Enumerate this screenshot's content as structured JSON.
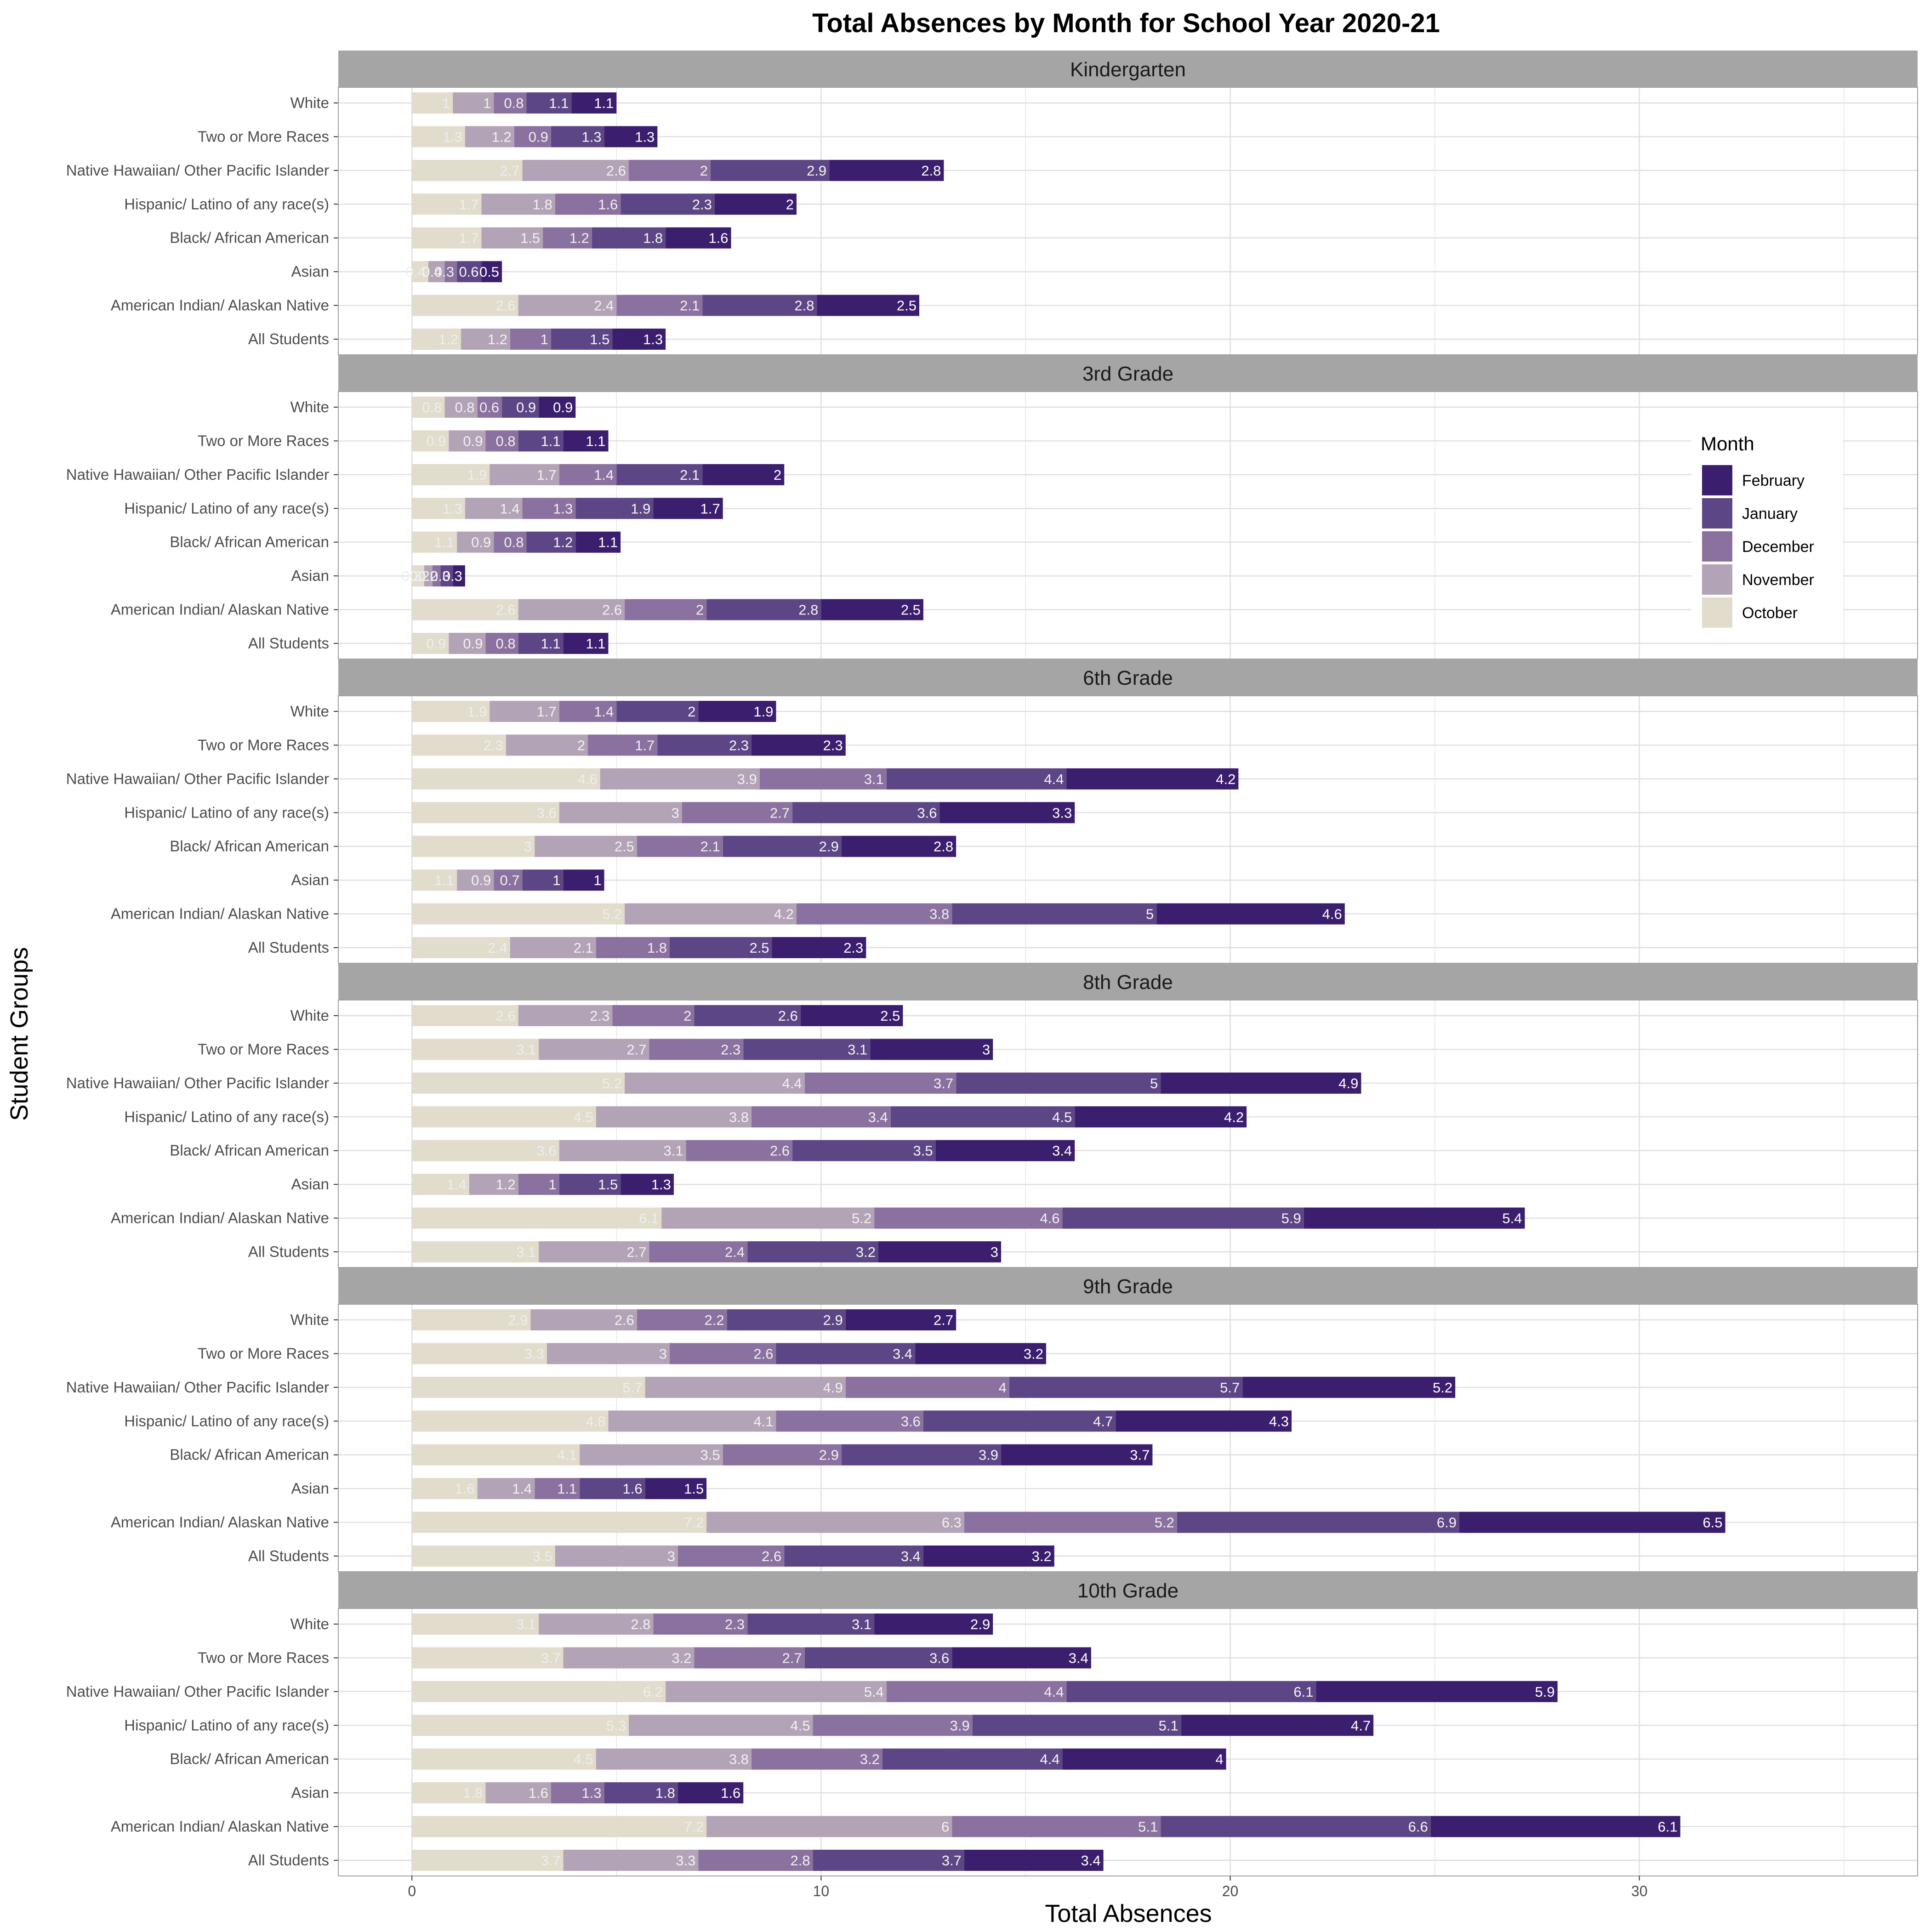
{
  "chart_data": {
    "type": "bar",
    "orientation": "horizontal",
    "stacked": true,
    "title": "Total Absences by Month for School Year 2020-21",
    "xlabel": "Total Absences",
    "ylabel": "Student Groups",
    "xlim": [
      -1.8,
      36.8
    ],
    "x_ticks": [
      0,
      10,
      20,
      30
    ],
    "grid": true,
    "legend": {
      "title": "Month",
      "position": "right",
      "entries": [
        "February",
        "January",
        "December",
        "November",
        "October"
      ]
    },
    "colors": {
      "October": "#e1dccb",
      "November": "#b2a3b6",
      "December": "#8b719f",
      "January": "#5d4686",
      "February": "#3b1e6d",
      "strip": "#a5a5a5",
      "grid": "#dedede",
      "panel_border": "#a0a0a0"
    },
    "label_colors": {
      "October": "#eeeeee",
      "November": "#f2f2f2",
      "December": "#f0f0f0",
      "January": "#f5f5f5",
      "February": "#ffffff"
    },
    "stack_order": [
      "October",
      "November",
      "December",
      "January",
      "February"
    ],
    "categories": [
      "White",
      "Two or More Races",
      "Native Hawaiian/ Other Pacific Islander",
      "Hispanic/ Latino of any race(s)",
      "Black/ African American",
      "Asian",
      "American Indian/ Alaskan Native",
      "All Students"
    ],
    "panels": [
      {
        "name": "Kindergarten",
        "series": [
          {
            "name": "October",
            "values": [
              1.0,
              1.3,
              2.7,
              1.7,
              1.7,
              0.4,
              2.6,
              1.2
            ]
          },
          {
            "name": "November",
            "values": [
              1.0,
              1.2,
              2.6,
              1.8,
              1.5,
              0.4,
              2.4,
              1.2
            ]
          },
          {
            "name": "December",
            "values": [
              0.8,
              0.9,
              2.0,
              1.6,
              1.2,
              0.3,
              2.1,
              1.0
            ]
          },
          {
            "name": "January",
            "values": [
              1.1,
              1.3,
              2.9,
              2.3,
              1.8,
              0.6,
              2.8,
              1.5
            ]
          },
          {
            "name": "February",
            "values": [
              1.1,
              1.3,
              2.8,
              2.0,
              1.6,
              0.5,
              2.5,
              1.3
            ]
          }
        ]
      },
      {
        "name": "3rd Grade",
        "series": [
          {
            "name": "October",
            "values": [
              0.8,
              0.9,
              1.9,
              1.3,
              1.1,
              0.3,
              2.6,
              0.9
            ]
          },
          {
            "name": "November",
            "values": [
              0.8,
              0.9,
              1.7,
              1.4,
              0.9,
              0.2,
              2.6,
              0.9
            ]
          },
          {
            "name": "December",
            "values": [
              0.6,
              0.8,
              1.4,
              1.3,
              0.8,
              0.2,
              2.0,
              0.8
            ]
          },
          {
            "name": "January",
            "values": [
              0.9,
              1.1,
              2.1,
              1.9,
              1.2,
              0.3,
              2.8,
              1.1
            ]
          },
          {
            "name": "February",
            "values": [
              0.9,
              1.1,
              2.0,
              1.7,
              1.1,
              0.3,
              2.5,
              1.1
            ]
          }
        ]
      },
      {
        "name": "6th Grade",
        "series": [
          {
            "name": "October",
            "values": [
              1.9,
              2.3,
              4.6,
              3.6,
              3.0,
              1.1,
              5.2,
              2.4
            ]
          },
          {
            "name": "November",
            "values": [
              1.7,
              2.0,
              3.9,
              3.0,
              2.5,
              0.9,
              4.2,
              2.1
            ]
          },
          {
            "name": "December",
            "values": [
              1.4,
              1.7,
              3.1,
              2.7,
              2.1,
              0.7,
              3.8,
              1.8
            ]
          },
          {
            "name": "January",
            "values": [
              2.0,
              2.3,
              4.4,
              3.6,
              2.9,
              1.0,
              5.0,
              2.5
            ]
          },
          {
            "name": "February",
            "values": [
              1.9,
              2.3,
              4.2,
              3.3,
              2.8,
              1.0,
              4.6,
              2.3
            ]
          }
        ]
      },
      {
        "name": "8th Grade",
        "series": [
          {
            "name": "October",
            "values": [
              2.6,
              3.1,
              5.2,
              4.5,
              3.6,
              1.4,
              6.1,
              3.1
            ]
          },
          {
            "name": "November",
            "values": [
              2.3,
              2.7,
              4.4,
              3.8,
              3.1,
              1.2,
              5.2,
              2.7
            ]
          },
          {
            "name": "December",
            "values": [
              2.0,
              2.3,
              3.7,
              3.4,
              2.6,
              1.0,
              4.6,
              2.4
            ]
          },
          {
            "name": "January",
            "values": [
              2.6,
              3.1,
              5.0,
              4.5,
              3.5,
              1.5,
              5.9,
              3.2
            ]
          },
          {
            "name": "February",
            "values": [
              2.5,
              3.0,
              4.9,
              4.2,
              3.4,
              1.3,
              5.4,
              3.0
            ]
          }
        ]
      },
      {
        "name": "9th Grade",
        "series": [
          {
            "name": "October",
            "values": [
              2.9,
              3.3,
              5.7,
              4.8,
              4.1,
              1.6,
              7.2,
              3.5
            ]
          },
          {
            "name": "November",
            "values": [
              2.6,
              3.0,
              4.9,
              4.1,
              3.5,
              1.4,
              6.3,
              3.0
            ]
          },
          {
            "name": "December",
            "values": [
              2.2,
              2.6,
              4.0,
              3.6,
              2.9,
              1.1,
              5.2,
              2.6
            ]
          },
          {
            "name": "January",
            "values": [
              2.9,
              3.4,
              5.7,
              4.7,
              3.9,
              1.6,
              6.9,
              3.4
            ]
          },
          {
            "name": "February",
            "values": [
              2.7,
              3.2,
              5.2,
              4.3,
              3.7,
              1.5,
              6.5,
              3.2
            ]
          }
        ]
      },
      {
        "name": "10th Grade",
        "series": [
          {
            "name": "October",
            "values": [
              3.1,
              3.7,
              6.2,
              5.3,
              4.5,
              1.8,
              7.2,
              3.7
            ]
          },
          {
            "name": "November",
            "values": [
              2.8,
              3.2,
              5.4,
              4.5,
              3.8,
              1.6,
              6.0,
              3.3
            ]
          },
          {
            "name": "December",
            "values": [
              2.3,
              2.7,
              4.4,
              3.9,
              3.2,
              1.3,
              5.1,
              2.8
            ]
          },
          {
            "name": "January",
            "values": [
              3.1,
              3.6,
              6.1,
              5.1,
              4.4,
              1.8,
              6.6,
              3.7
            ]
          },
          {
            "name": "February",
            "values": [
              2.9,
              3.4,
              5.9,
              4.7,
              4.0,
              1.6,
              6.1,
              3.4
            ]
          }
        ]
      }
    ]
  }
}
